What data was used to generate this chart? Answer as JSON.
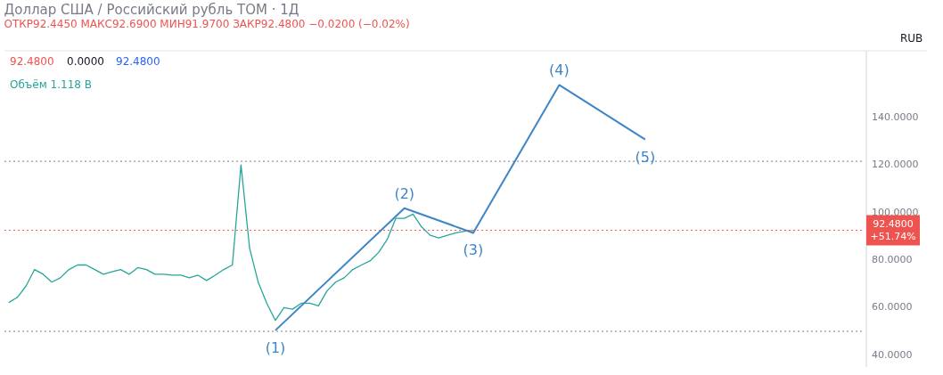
{
  "chart_data": {
    "type": "line",
    "title": "Доллар США / Российский рубль TOM · 1Д",
    "subtitle": "ОТКР92.4450 МАКС92.6900 МИН91.9700 ЗАКР92.4800 −0.0200 (−0.02%)",
    "annotations": [
      "92.4800",
      "0.0000",
      "92.4800",
      "Объём 1.118 B",
      "RUB",
      {
        "text": "(1)",
        "y": 50.4
      },
      {
        "text": "(2)",
        "y": 101.8
      },
      {
        "text": "(3)",
        "y": 91.4
      },
      {
        "text": "(4)",
        "y": 153.6
      },
      {
        "text": "(5)",
        "y": 130.7
      }
    ],
    "categories": [
      null,
      null,
      null,
      null,
      null,
      null,
      null,
      null,
      null,
      null,
      null,
      null,
      null,
      null,
      null,
      null,
      null,
      null,
      null,
      null,
      null,
      null,
      null,
      null,
      null,
      null,
      null,
      null,
      null,
      null,
      null,
      null,
      null,
      null,
      null,
      null,
      null,
      null,
      null,
      null,
      null,
      null,
      null,
      null,
      null,
      null,
      null,
      null,
      null,
      null,
      null,
      null,
      null,
      null,
      null,
      null,
      null,
      null,
      null,
      null,
      null,
      null,
      null,
      null,
      null,
      null,
      null,
      null,
      null,
      null,
      null,
      null,
      null,
      null,
      null,
      null,
      null,
      null,
      null,
      null,
      null,
      null,
      null,
      null,
      null,
      null,
      null,
      null,
      null,
      null,
      null,
      null,
      null,
      null,
      null,
      null,
      null,
      null,
      null,
      null
    ],
    "series": [
      {
        "color": "#26a69a",
        "values": [
          62.1,
          64.3,
          69,
          76,
          74,
          70.7,
          72.5,
          76,
          77.9,
          77.9,
          76,
          74,
          75,
          76,
          74,
          76.8,
          76,
          74,
          74,
          73.6,
          73.6,
          72.5,
          73.6,
          71.4,
          73.6,
          76,
          77.9,
          120,
          85,
          70.7,
          61.8,
          54.6,
          60,
          59.3,
          61.8,
          61.8,
          60.7,
          67,
          70.7,
          72.5,
          76,
          77.9,
          79.6,
          83.2,
          88.6,
          97.5,
          97.5,
          99.3,
          93.9,
          90.4,
          89.3,
          90.4,
          91.4,
          92.1,
          92.5,
          null,
          null,
          null,
          null,
          null,
          null,
          null,
          null,
          null,
          null,
          null,
          null,
          null,
          null,
          null,
          null,
          null,
          null,
          null,
          null,
          null,
          null,
          null,
          null,
          null,
          null,
          null,
          null,
          null,
          null,
          null,
          null,
          null,
          null,
          null,
          null,
          null,
          null,
          null,
          null,
          null,
          null,
          null,
          null,
          null
        ]
      },
      {
        "color": "#3d85c6",
        "values": [
          null,
          null,
          null,
          null,
          null,
          null,
          null,
          null,
          null,
          null,
          null,
          null,
          null,
          null,
          null,
          null,
          null,
          null,
          null,
          null,
          null,
          null,
          null,
          null,
          null,
          null,
          null,
          null,
          null,
          null,
          null,
          50.4,
          null,
          null,
          null,
          null,
          null,
          null,
          null,
          null,
          null,
          null,
          null,
          null,
          null,
          null,
          101.8,
          null,
          null,
          null,
          null,
          null,
          null,
          null,
          91.4,
          null,
          null,
          null,
          null,
          null,
          null,
          null,
          null,
          null,
          153.6,
          null,
          null,
          null,
          null,
          null,
          null,
          null,
          null,
          null,
          130.7,
          null,
          null,
          null,
          null,
          null,
          null,
          null,
          null,
          null,
          null,
          null,
          null,
          null,
          null,
          null,
          null,
          null,
          null,
          null,
          null,
          null,
          null,
          null,
          null,
          null
        ],
        "name": null
      }
    ],
    "ylim": [
      35,
      168
    ],
    "yticks": [
      {
        "value": 40,
        "label": "40.0000"
      },
      {
        "value": 60,
        "label": "60.0000"
      },
      {
        "value": 80,
        "label": "80.0000"
      },
      {
        "value": 100,
        "label": "100.0000"
      },
      {
        "value": 120,
        "label": "120.0000"
      },
      {
        "value": 140,
        "label": "140.0000"
      }
    ],
    "ref_lines": [
      {
        "axis": "y",
        "value": 121.5,
        "label": null,
        "color": "#787b86",
        "line_style": "dotted"
      },
      {
        "axis": "y",
        "value": 50,
        "label": null,
        "color": "#787b86",
        "line_style": "dotted"
      },
      {
        "axis": "y",
        "value": 92.48,
        "label": "92.4800 +51.74%",
        "color": "#ef5350",
        "line_style": "dotted"
      }
    ],
    "grid": false,
    "tick_labels": "y",
    "marker": "none"
  }
}
